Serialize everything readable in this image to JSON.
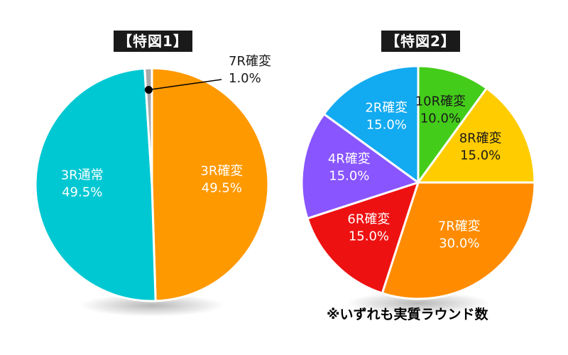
{
  "chart_data": [
    {
      "type": "pie",
      "title": "【特図1】",
      "slices": [
        {
          "label": "3R確変",
          "value": 49.5,
          "value_text": "49.5%",
          "color": "#FF9900",
          "text_color": "#FFFFFF"
        },
        {
          "label": "3R通常",
          "value": 49.5,
          "value_text": "49.5%",
          "color": "#00C8D2",
          "text_color": "#FFFFFF"
        },
        {
          "label": "7R確変",
          "value": 1.0,
          "value_text": "1.0%",
          "color": "#A9A9A9",
          "text_color": "#1A1A1A",
          "callout": true
        }
      ]
    },
    {
      "type": "pie",
      "title": "【特図2】",
      "slices": [
        {
          "label": "10R確変",
          "value": 10.0,
          "value_text": "10.0%",
          "color": "#44CC1A",
          "text_color": "#1A1A1A"
        },
        {
          "label": "8R確変",
          "value": 15.0,
          "value_text": "15.0%",
          "color": "#FFCC00",
          "text_color": "#1A1A1A"
        },
        {
          "label": "7R確変",
          "value": 30.0,
          "value_text": "30.0%",
          "color": "#FF8C00",
          "text_color": "#FFFFFF"
        },
        {
          "label": "6R確変",
          "value": 15.0,
          "value_text": "15.0%",
          "color": "#EE1111",
          "text_color": "#FFFFFF"
        },
        {
          "label": "4R確変",
          "value": 15.0,
          "value_text": "15.0%",
          "color": "#8855FF",
          "text_color": "#FFFFFF"
        },
        {
          "label": "2R確変",
          "value": 15.0,
          "value_text": "15.0%",
          "color": "#12AAF0",
          "text_color": "#FFFFFF"
        }
      ]
    }
  ],
  "footnote": "※いずれも実質ラウンド数"
}
